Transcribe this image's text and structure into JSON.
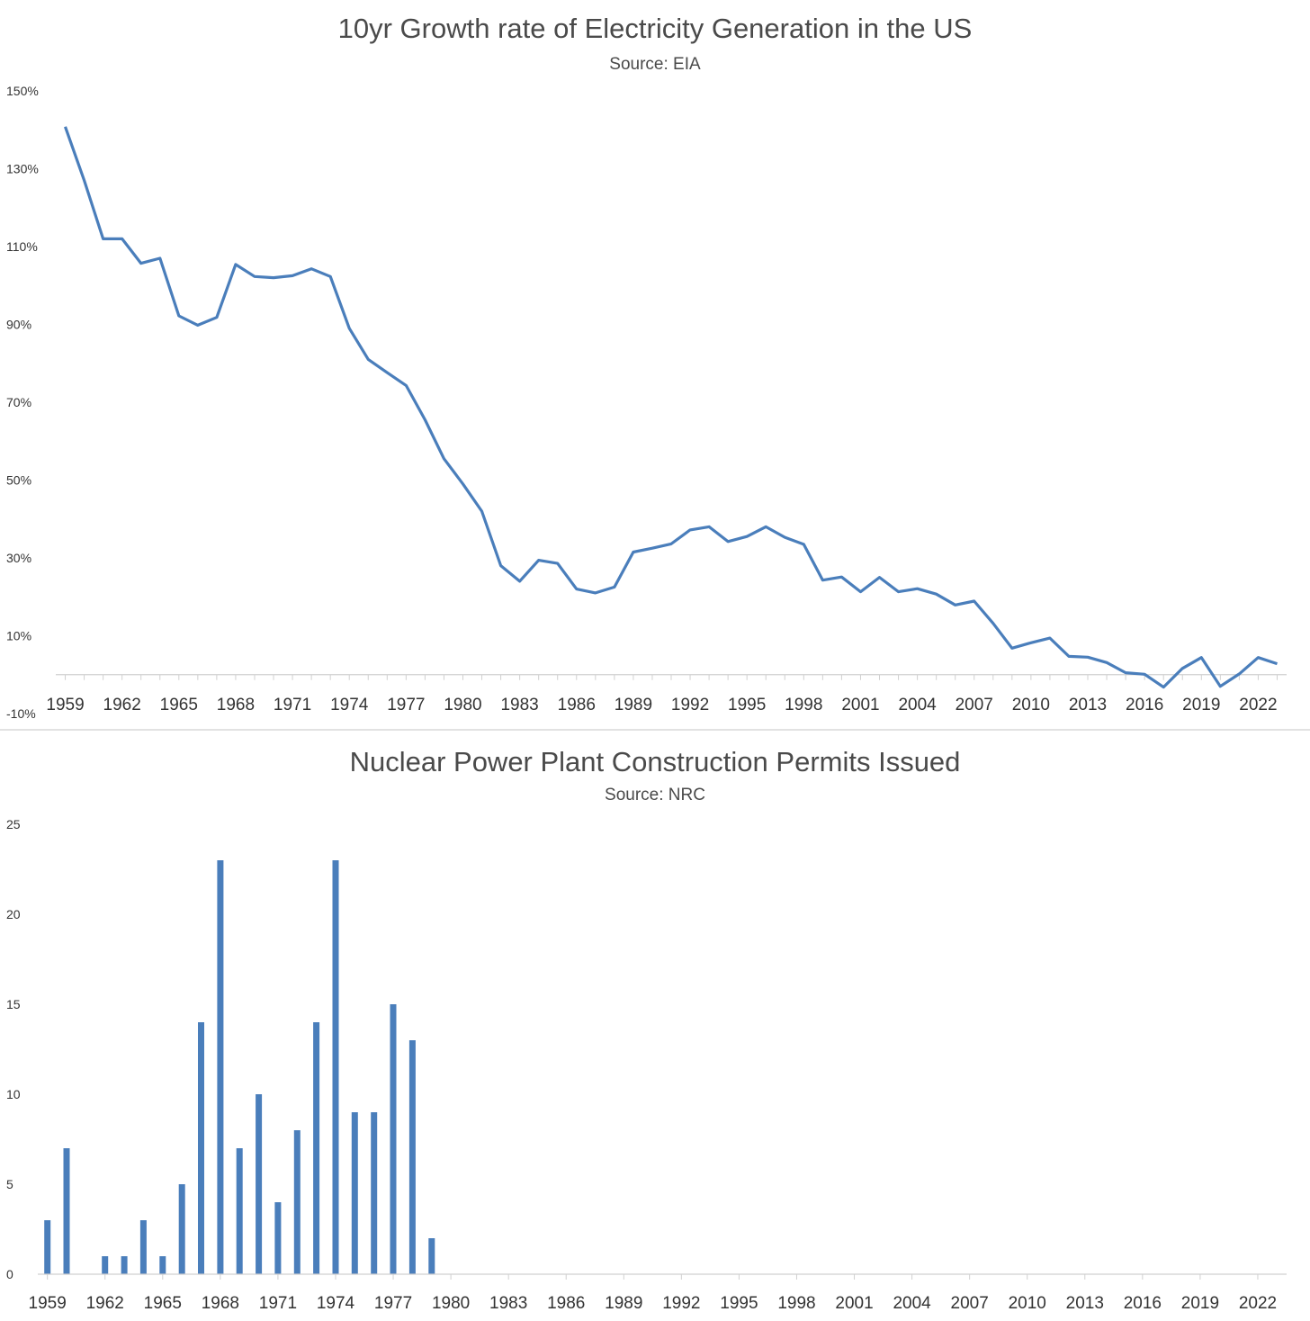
{
  "chart_data": [
    {
      "type": "line",
      "title": "10yr Growth rate of Electricity Generation in the US",
      "subtitle": "Source: EIA",
      "xlabel": "",
      "ylabel": "",
      "ylim": [
        -10,
        150
      ],
      "y_ticks": [
        "150%",
        "130%",
        "110%",
        "90%",
        "70%",
        "50%",
        "30%",
        "10%",
        "-10%"
      ],
      "x_tick_labels": [
        "1959",
        "1962",
        "1965",
        "1968",
        "1971",
        "1974",
        "1977",
        "1980",
        "1983",
        "1986",
        "1989",
        "1992",
        "1995",
        "1998",
        "2001",
        "2004",
        "2007",
        "2010",
        "2013",
        "2016",
        "2019",
        "2022"
      ],
      "color": "#4a7ebb",
      "series": [
        {
          "name": "10yr growth rate",
          "x": [
            1959,
            1960,
            1961,
            1962,
            1963,
            1964,
            1965,
            1966,
            1967,
            1968,
            1969,
            1970,
            1971,
            1972,
            1973,
            1974,
            1975,
            1976,
            1977,
            1978,
            1979,
            1980,
            1981,
            1982,
            1983,
            1984,
            1985,
            1986,
            1987,
            1988,
            1989,
            1990,
            1991,
            1992,
            1993,
            1994,
            1995,
            1996,
            1997,
            1998,
            1999,
            2000,
            2001,
            2002,
            2003,
            2004,
            2005,
            2006,
            2007,
            2008,
            2009,
            2010,
            2011,
            2012,
            2013,
            2014,
            2015,
            2016,
            2017,
            2018,
            2019,
            2020,
            2021,
            2022,
            2023
          ],
          "values": [
            140.8,
            127,
            112,
            112,
            105.7,
            107,
            92.2,
            89.8,
            91.8,
            105.4,
            102.3,
            102,
            102.5,
            104.3,
            102.3,
            89,
            81,
            77.6,
            74.3,
            65.5,
            55.5,
            49,
            42,
            28,
            24,
            29.4,
            28.6,
            22,
            21,
            22.5,
            31.5,
            32.5,
            33.6,
            37.2,
            38,
            34.2,
            35.5,
            38,
            35.3,
            33.5,
            24.3,
            25.1,
            21.3,
            25,
            21.3,
            22.1,
            20.7,
            17.9,
            18.9,
            13.2,
            6.8,
            8.2,
            9.4,
            4.7,
            4.5,
            3.1,
            0.5,
            0.1,
            -3.2,
            1.6,
            4.4,
            -3,
            0.2,
            4.4,
            2.8
          ]
        }
      ]
    },
    {
      "type": "bar",
      "title": "Nuclear Power Plant Construction Permits Issued",
      "subtitle": "Source: NRC",
      "xlabel": "",
      "ylabel": "",
      "ylim": [
        0,
        25
      ],
      "y_ticks": [
        "25",
        "20",
        "15",
        "10",
        "5",
        "0"
      ],
      "x_tick_labels": [
        "1959",
        "1962",
        "1965",
        "1968",
        "1971",
        "1974",
        "1977",
        "1980",
        "1983",
        "1986",
        "1989",
        "1992",
        "1995",
        "1998",
        "2001",
        "2004",
        "2007",
        "2010",
        "2013",
        "2016",
        "2019",
        "2022"
      ],
      "color": "#4a7ebb",
      "categories": [
        1959,
        1960,
        1961,
        1962,
        1963,
        1964,
        1965,
        1966,
        1967,
        1968,
        1969,
        1970,
        1971,
        1972,
        1973,
        1974,
        1975,
        1976,
        1977,
        1978,
        1979,
        1980,
        1981,
        1982,
        1983,
        1984,
        1985,
        1986,
        1987,
        1988,
        1989,
        1990,
        1991,
        1992,
        1993,
        1994,
        1995,
        1996,
        1997,
        1998,
        1999,
        2000,
        2001,
        2002,
        2003,
        2004,
        2005,
        2006,
        2007,
        2008,
        2009,
        2010,
        2011,
        2012,
        2013,
        2014,
        2015,
        2016,
        2017,
        2018,
        2019,
        2020,
        2021,
        2022,
        2023
      ],
      "values": [
        3,
        7,
        0,
        1,
        1,
        3,
        1,
        5,
        14,
        23,
        7,
        10,
        4,
        8,
        14,
        23,
        9,
        9,
        15,
        13,
        2,
        0,
        0,
        0,
        0,
        0,
        0,
        0,
        0,
        0,
        0,
        0,
        0,
        0,
        0,
        0,
        0,
        0,
        0,
        0,
        0,
        0,
        0,
        0,
        0,
        0,
        0,
        0,
        0,
        0,
        0,
        0,
        0,
        0,
        0,
        0,
        0,
        0,
        0,
        0,
        0,
        0,
        0,
        0,
        0
      ]
    }
  ]
}
